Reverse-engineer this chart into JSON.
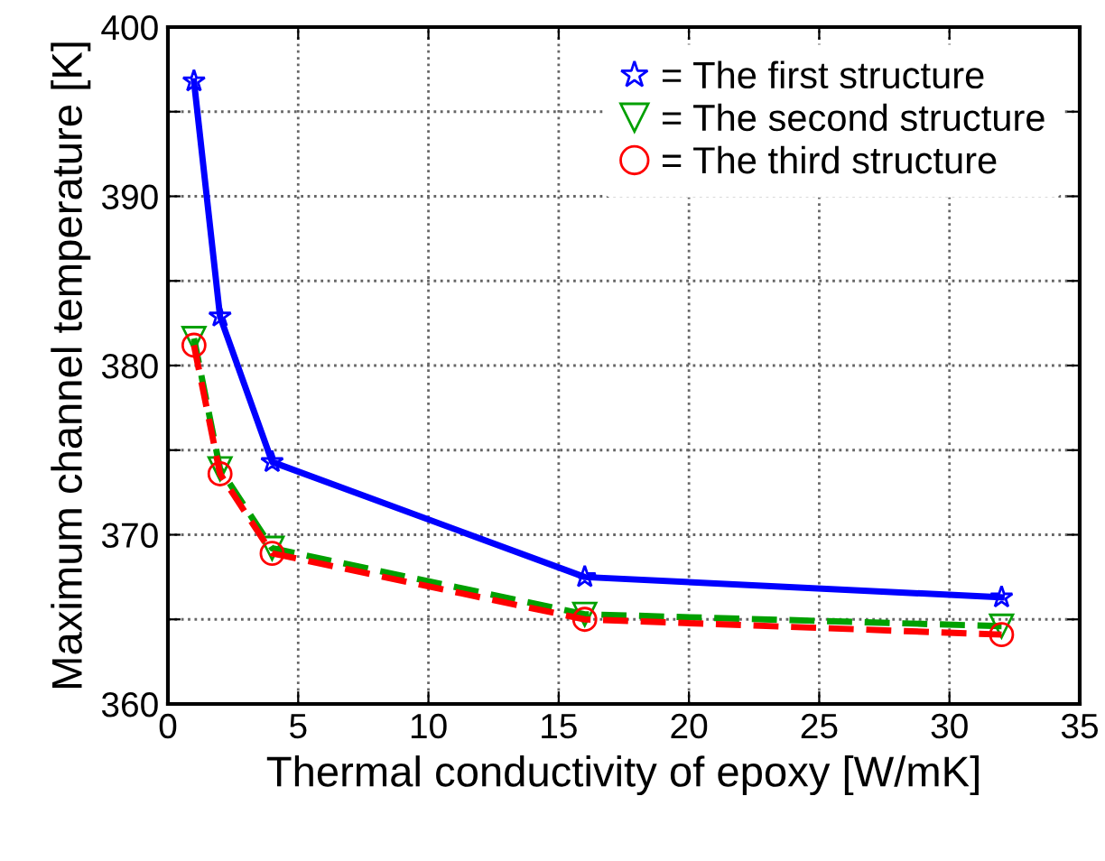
{
  "chart_data": {
    "type": "line",
    "xlabel": "Thermal conductivity of epoxy [W/mK]",
    "ylabel": "Maximum channel temperature [K]",
    "x": [
      1,
      2,
      4,
      16,
      32
    ],
    "series": [
      {
        "name": "= The first structure",
        "color": "#0000ff",
        "marker": "star",
        "line_style": "solid",
        "values": [
          396.8,
          382.9,
          374.3,
          367.5,
          366.3
        ]
      },
      {
        "name": "= The second structure",
        "color": "#00a000",
        "marker": "triangle",
        "line_style": "dashed",
        "values": [
          381.6,
          373.9,
          369.2,
          365.3,
          364.6
        ]
      },
      {
        "name": "= The third structure",
        "color": "#ff0000",
        "marker": "circle",
        "line_style": "dashed",
        "values": [
          381.2,
          373.6,
          368.9,
          365.0,
          364.1
        ]
      }
    ],
    "xlim": [
      0,
      35
    ],
    "xticks": [
      0,
      5,
      10,
      15,
      20,
      25,
      30,
      35
    ],
    "ylim": [
      360,
      400
    ],
    "yticks": [
      360,
      {
        "value": 365,
        "label": null
      },
      370,
      {
        "value": 375,
        "label": null
      },
      380,
      {
        "value": 385,
        "label": null
      },
      390,
      {
        "value": 395,
        "label": null
      },
      400
    ],
    "grid": true,
    "legend": "top right"
  }
}
